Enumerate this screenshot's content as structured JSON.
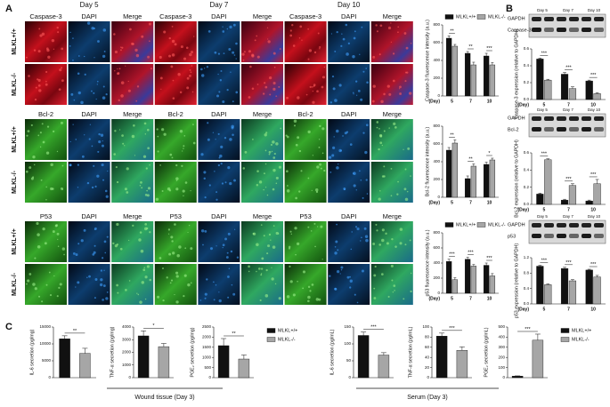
{
  "panels": {
    "labels": [
      "A",
      "B",
      "C"
    ]
  },
  "panel_a": {
    "days": [
      "Day 5",
      "Day 7",
      "Day 10"
    ],
    "rows": [
      "MLKL+/+",
      "MLKL-/-"
    ],
    "stains": [
      [
        "Caspase-3",
        "DAPI",
        "Merge"
      ],
      [
        "Bcl-2",
        "DAPI",
        "Merge"
      ],
      [
        "P53",
        "DAPI",
        "Merge"
      ]
    ]
  },
  "panel_b": {
    "days": [
      "Day 5",
      "Day 7",
      "Day 10"
    ],
    "loading": "GAPDH",
    "targets": [
      "Caspase-3",
      "Bcl-2",
      "p53"
    ]
  },
  "panel_c": {
    "groups": [
      "Wound tissue (Day 3)",
      "Serum (Day 3)"
    ]
  },
  "chart_data": [
    {
      "type": "bar",
      "ylabel": "Caspase-3 fluorescence intensity (a.u.)",
      "xlabel": "(Day)",
      "categories": [
        "5",
        "7",
        "10"
      ],
      "ylim": [
        0,
        800
      ],
      "yticks": [
        0,
        200,
        400,
        600,
        800
      ],
      "legend": "top",
      "series": [
        {
          "name": "MLKL+/+",
          "color": "#111111",
          "values": [
            650,
            480,
            450
          ],
          "errors": [
            25,
            20,
            30
          ]
        },
        {
          "name": "MLKL-/-",
          "color": "#a6a6a6",
          "values": [
            560,
            350,
            350
          ],
          "errors": [
            20,
            30,
            25
          ]
        }
      ],
      "annotations": [
        "**",
        "**",
        "***"
      ]
    },
    {
      "type": "bar",
      "ylabel": "Bcl-2 fluorescence intensity (a.u.)",
      "xlabel": "(Day)",
      "categories": [
        "5",
        "7",
        "10"
      ],
      "ylim": [
        0,
        800
      ],
      "yticks": [
        0,
        200,
        400,
        600,
        800
      ],
      "series": [
        {
          "color": "#111111",
          "values": [
            530,
            210,
            370
          ],
          "errors": [
            30,
            30,
            25
          ]
        },
        {
          "color": "#a6a6a6",
          "values": [
            610,
            350,
            420
          ],
          "errors": [
            35,
            25,
            20
          ]
        }
      ],
      "annotations": [
        "**",
        "**",
        "*"
      ]
    },
    {
      "type": "bar",
      "ylabel": "p53 fluorescence intensity (a.u.)",
      "xlabel": "(Day)",
      "categories": [
        "5",
        "7",
        "10"
      ],
      "ylim": [
        0,
        800
      ],
      "yticks": [
        0,
        200,
        400,
        600,
        800
      ],
      "legend": "top",
      "series": [
        {
          "name": "MLKL+/+",
          "color": "#111111",
          "values": [
            420,
            450,
            370
          ],
          "errors": [
            30,
            25,
            30
          ]
        },
        {
          "name": "MLKL-/-",
          "color": "#a6a6a6",
          "values": [
            180,
            360,
            230
          ],
          "errors": [
            25,
            20,
            30
          ]
        }
      ],
      "annotations": [
        "***",
        "***",
        "***"
      ]
    },
    {
      "type": "bar",
      "ylabel": "Caspase-3 expression (relative to GAPDH)",
      "xlabel": "(Day)",
      "categories": [
        "5",
        "7",
        "10"
      ],
      "ylim": [
        0,
        0.6
      ],
      "yticks": [
        {
          "value": 0,
          "label": "0.0"
        },
        0.2,
        0.4,
        0.6
      ],
      "series": [
        {
          "color": "#111111",
          "values": [
            0.48,
            0.3,
            0.22
          ],
          "errors": [
            0.01,
            0.02,
            0.01
          ]
        },
        {
          "color": "#a6a6a6",
          "values": [
            0.23,
            0.13,
            0.07
          ],
          "errors": [
            0.01,
            0.02,
            0.01
          ]
        }
      ],
      "annotations": [
        "***",
        "***",
        "***"
      ]
    },
    {
      "type": "bar",
      "ylabel": "Bcl-2 expression (relative to GAPDH)",
      "xlabel": "(Day)",
      "categories": [
        "5",
        "7",
        "10"
      ],
      "ylim": [
        0,
        0.6
      ],
      "yticks": [
        {
          "value": 0,
          "label": "0.0"
        },
        0.2,
        0.4,
        0.6
      ],
      "series": [
        {
          "color": "#111111",
          "values": [
            0.12,
            0.05,
            0.04
          ],
          "errors": [
            0.01,
            0.01,
            0.01
          ]
        },
        {
          "color": "#a6a6a6",
          "values": [
            0.52,
            0.22,
            0.24
          ],
          "errors": [
            0.01,
            0.02,
            0.05
          ]
        }
      ],
      "annotations": [
        "***",
        "***",
        "***"
      ]
    },
    {
      "type": "bar",
      "ylabel": "p53 expression (relative to GAPDH)",
      "xlabel": "(Day)",
      "categories": [
        "5",
        "7",
        "10"
      ],
      "ylim": [
        0,
        1.2
      ],
      "yticks": [
        {
          "value": 0,
          "label": "0.0"
        },
        0.4,
        0.8,
        1.2
      ],
      "series": [
        {
          "color": "#111111",
          "values": [
            0.98,
            0.92,
            0.88
          ],
          "errors": [
            0.02,
            0.03,
            0.02
          ]
        },
        {
          "color": "#a6a6a6",
          "values": [
            0.5,
            0.6,
            0.7
          ],
          "errors": [
            0.02,
            0.03,
            0.04
          ]
        }
      ],
      "annotations": [
        "***",
        "***",
        "***"
      ]
    },
    {
      "type": "bar",
      "ylabel": "IL-6 secretion (pg/mg)",
      "ylim": [
        0,
        15000
      ],
      "yticks": [
        0,
        5000,
        10000,
        15000
      ],
      "series": [
        {
          "color": "#111111",
          "values": [
            11500
          ],
          "errors": [
            900
          ]
        },
        {
          "color": "#a6a6a6",
          "values": [
            7200
          ],
          "errors": [
            1500
          ]
        }
      ],
      "annotations": [
        "**"
      ]
    },
    {
      "type": "bar",
      "ylabel": "TNF-α secretion (pg/mg)",
      "ylim": [
        0,
        4000
      ],
      "yticks": [
        0,
        1000,
        2000,
        3000,
        4000
      ],
      "series": [
        {
          "color": "#111111",
          "values": [
            3300
          ],
          "errors": [
            400
          ]
        },
        {
          "color": "#a6a6a6",
          "values": [
            2450
          ],
          "errors": [
            250
          ]
        }
      ],
      "annotations": [
        "*"
      ]
    },
    {
      "type": "bar",
      "ylabel": "PGE₂ secretion (pg/mg)",
      "ylim": [
        0,
        2500
      ],
      "yticks": [
        0,
        500,
        1000,
        1500,
        2000,
        2500
      ],
      "legend": "right",
      "series": [
        {
          "name": "MLKL+/+",
          "color": "#111111",
          "values": [
            1580
          ],
          "errors": [
            350
          ]
        },
        {
          "name": "MLKL-/-",
          "color": "#a6a6a6",
          "values": [
            920
          ],
          "errors": [
            200
          ]
        }
      ],
      "annotations": [
        "**"
      ]
    },
    {
      "type": "bar",
      "ylabel": "IL-6 secretion (pg/mL)",
      "ylim": [
        0,
        150
      ],
      "yticks": [
        0,
        50,
        100,
        150
      ],
      "series": [
        {
          "color": "#111111",
          "values": [
            125
          ],
          "errors": [
            10
          ]
        },
        {
          "color": "#a6a6a6",
          "values": [
            67
          ],
          "errors": [
            7
          ]
        }
      ],
      "annotations": [
        "***"
      ]
    },
    {
      "type": "bar",
      "ylabel": "TNF-α secretion (pg/mL)",
      "ylim": [
        0,
        100
      ],
      "yticks": [
        0,
        20,
        40,
        60,
        80,
        100
      ],
      "series": [
        {
          "color": "#111111",
          "values": [
            82
          ],
          "errors": [
            6
          ]
        },
        {
          "color": "#a6a6a6",
          "values": [
            54
          ],
          "errors": [
            7
          ]
        }
      ],
      "annotations": [
        "***"
      ]
    },
    {
      "type": "bar",
      "ylabel": "PGE₂ secretion (pg/mL)",
      "ylim": [
        0,
        500
      ],
      "yticks": [
        0,
        100,
        200,
        300,
        400,
        500
      ],
      "legend": "right",
      "series": [
        {
          "name": "MLKL+/+",
          "color": "#111111",
          "values": [
            15
          ],
          "errors": [
            3
          ]
        },
        {
          "name": "MLKL-/-",
          "color": "#a6a6a6",
          "values": [
            370
          ],
          "errors": [
            60
          ]
        }
      ],
      "annotations": [
        "***"
      ]
    }
  ]
}
